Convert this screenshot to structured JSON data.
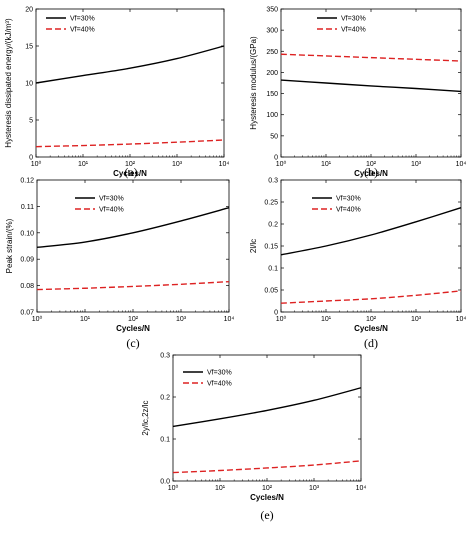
{
  "chart_data": [
    {
      "type": "line",
      "panel_label": "(a)",
      "xlabel": "Cycles/N",
      "ylabel": "Hysteresis dissipated energy/(kJ/m³)",
      "x_scale": "log",
      "xlim": [
        1,
        10000
      ],
      "ylim": [
        0,
        20
      ],
      "x_ticks": [
        1,
        10,
        100,
        1000,
        10000
      ],
      "x_tick_labels": [
        "10⁰",
        "10¹",
        "10²",
        "10³",
        "10⁴"
      ],
      "y_ticks": [
        0,
        5,
        10,
        15,
        20
      ],
      "y_tick_labels": [
        "0",
        "5",
        "10",
        "15",
        "20"
      ],
      "legend_position": "top-left",
      "x": [
        1,
        10,
        100,
        1000,
        10000
      ],
      "series": [
        {
          "name": "Vf=30%",
          "color": "#000000",
          "dash": "solid",
          "values": [
            10.0,
            11.0,
            12.0,
            13.3,
            15.0
          ]
        },
        {
          "name": "Vf=40%",
          "color": "#dd2222",
          "dash": "dashed",
          "values": [
            1.4,
            1.55,
            1.75,
            2.0,
            2.3
          ]
        }
      ]
    },
    {
      "type": "line",
      "panel_label": "(b)",
      "xlabel": "Cycles/N",
      "ylabel": "Hysteresis modulus/(GPa)",
      "x_scale": "log",
      "xlim": [
        1,
        10000
      ],
      "ylim": [
        0,
        350
      ],
      "x_ticks": [
        1,
        10,
        100,
        1000,
        10000
      ],
      "x_tick_labels": [
        "10⁰",
        "10¹",
        "10²",
        "10³",
        "10⁴"
      ],
      "y_ticks": [
        0,
        50,
        100,
        150,
        200,
        250,
        300,
        350
      ],
      "y_tick_labels": [
        "0",
        "50",
        "100",
        "150",
        "200",
        "250",
        "300",
        "350"
      ],
      "legend_position": "top-right",
      "x": [
        1,
        10,
        100,
        1000,
        10000
      ],
      "series": [
        {
          "name": "Vf=30%",
          "color": "#000000",
          "dash": "solid",
          "values": [
            182,
            175,
            168,
            162,
            155
          ]
        },
        {
          "name": "Vf=40%",
          "color": "#dd2222",
          "dash": "dashed",
          "values": [
            243,
            239,
            235,
            231,
            227
          ]
        }
      ]
    },
    {
      "type": "line",
      "panel_label": "(c)",
      "xlabel": "Cycles/N",
      "ylabel": "Peak strain/(%)",
      "x_scale": "log",
      "xlim": [
        1,
        10000
      ],
      "ylim": [
        0.07,
        0.12
      ],
      "x_ticks": [
        1,
        10,
        100,
        1000,
        10000
      ],
      "x_tick_labels": [
        "10⁰",
        "10¹",
        "10²",
        "10³",
        "10⁴"
      ],
      "y_ticks": [
        0.07,
        0.08,
        0.09,
        0.1,
        0.11,
        0.12
      ],
      "y_tick_labels": [
        "0.07",
        "0.08",
        "0.09",
        "0.10",
        "0.11",
        "0.12"
      ],
      "legend_position": "top-center",
      "x": [
        1,
        10,
        100,
        1000,
        10000
      ],
      "series": [
        {
          "name": "Vf=30%",
          "color": "#000000",
          "dash": "solid",
          "values": [
            0.0945,
            0.0965,
            0.1,
            0.1045,
            0.1095
          ]
        },
        {
          "name": "Vf=40%",
          "color": "#dd2222",
          "dash": "dashed",
          "values": [
            0.0785,
            0.079,
            0.0797,
            0.0805,
            0.0815
          ]
        }
      ]
    },
    {
      "type": "line",
      "panel_label": "(d)",
      "xlabel": "Cycles/N",
      "ylabel": "2l/lc",
      "x_scale": "log",
      "xlim": [
        1,
        10000
      ],
      "ylim": [
        0,
        0.3
      ],
      "x_ticks": [
        1,
        10,
        100,
        1000,
        10000
      ],
      "x_tick_labels": [
        "10⁰",
        "10¹",
        "10²",
        "10³",
        "10⁴"
      ],
      "y_ticks": [
        0,
        0.05,
        0.1,
        0.15,
        0.2,
        0.25,
        0.3
      ],
      "y_tick_labels": [
        "0",
        "0.05",
        "0.1",
        "0.15",
        "0.2",
        "0.25",
        "0.3"
      ],
      "legend_position": "top-center",
      "x": [
        1,
        10,
        100,
        1000,
        10000
      ],
      "series": [
        {
          "name": "Vf=30%",
          "color": "#000000",
          "dash": "solid",
          "values": [
            0.13,
            0.15,
            0.175,
            0.205,
            0.237
          ]
        },
        {
          "name": "Vf=40%",
          "color": "#dd2222",
          "dash": "dashed",
          "values": [
            0.02,
            0.025,
            0.03,
            0.038,
            0.048
          ]
        }
      ]
    },
    {
      "type": "line",
      "panel_label": "(e)",
      "xlabel": "Cycles/N",
      "ylabel": "2y/lc,2z/lc",
      "x_scale": "log",
      "xlim": [
        1,
        10000
      ],
      "ylim": [
        0,
        0.3
      ],
      "x_ticks": [
        1,
        10,
        100,
        1000,
        10000
      ],
      "x_tick_labels": [
        "10⁰",
        "10¹",
        "10²",
        "10³",
        "10⁴"
      ],
      "y_ticks": [
        0,
        0.1,
        0.2,
        0.3
      ],
      "y_tick_labels": [
        "0.0",
        "0.1",
        "0.2",
        "0.3"
      ],
      "legend_position": "top-left",
      "x": [
        1,
        10,
        100,
        1000,
        10000
      ],
      "series": [
        {
          "name": "Vf=30%",
          "color": "#000000",
          "dash": "solid",
          "values": [
            0.13,
            0.148,
            0.168,
            0.192,
            0.222
          ]
        },
        {
          "name": "Vf=40%",
          "color": "#dd2222",
          "dash": "dashed",
          "values": [
            0.02,
            0.025,
            0.031,
            0.038,
            0.048
          ]
        }
      ]
    }
  ]
}
